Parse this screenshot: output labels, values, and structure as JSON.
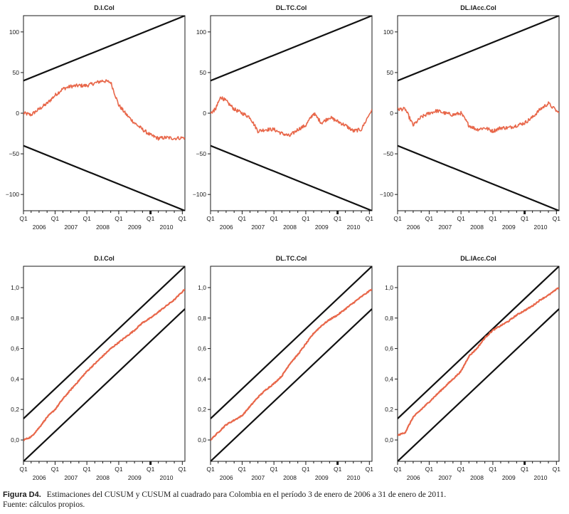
{
  "chart_data": [
    {
      "type": "line",
      "title": "D.I.Col",
      "xlabel": "",
      "ylabel": "",
      "x_range": [
        "2006-01-03",
        "2011-01-31"
      ],
      "ylim": [
        -120,
        120
      ],
      "y_ticks": [
        -100,
        -50,
        0,
        50,
        100
      ],
      "y_tick_labels": [
        "−100",
        "−50",
        "0",
        "50",
        "100"
      ],
      "x_tick_labels": [
        "Q1",
        "Q1",
        "Q1",
        "Q1",
        "Q1",
        "Q1"
      ],
      "year_labels": [
        "2006",
        "2007",
        "2008",
        "2009",
        "2010"
      ],
      "grid": false,
      "bounds": [
        {
          "x": [
            "2006-01-03",
            "2011-01-31"
          ],
          "y": [
            40,
            120
          ]
        },
        {
          "x": [
            "2006-01-03",
            "2011-01-31"
          ],
          "y": [
            -40,
            -120
          ]
        }
      ],
      "series": [
        {
          "x": [
            "2006-01-03",
            "2006-04-01",
            "2006-07-01",
            "2006-10-01",
            "2007-01-01",
            "2007-04-01",
            "2007-07-01",
            "2007-10-01",
            "2008-01-01",
            "2008-04-01",
            "2008-07-01",
            "2008-10-01",
            "2009-01-01",
            "2009-04-01",
            "2009-07-01",
            "2009-10-01",
            "2010-01-01",
            "2010-04-01",
            "2010-07-01",
            "2010-10-01",
            "2011-01-31"
          ],
          "y": [
            0,
            -2,
            5,
            12,
            22,
            30,
            33,
            34,
            34,
            37,
            40,
            38,
            10,
            -2,
            -12,
            -20,
            -27,
            -31,
            -30,
            -31,
            -30
          ]
        }
      ]
    },
    {
      "type": "line",
      "title": "DL.TC.Col",
      "xlabel": "",
      "ylabel": "",
      "x_range": [
        "2006-01-03",
        "2011-01-31"
      ],
      "ylim": [
        -120,
        120
      ],
      "y_ticks": [
        -100,
        -50,
        0,
        50,
        100
      ],
      "y_tick_labels": [
        "−100",
        "−50",
        "0",
        "50",
        "100"
      ],
      "x_tick_labels": [
        "Q1",
        "Q1",
        "Q1",
        "Q1",
        "Q1",
        "Q1"
      ],
      "year_labels": [
        "2006",
        "2007",
        "2008",
        "2009",
        "2010"
      ],
      "grid": false,
      "bounds": [
        {
          "x": [
            "2006-01-03",
            "2011-01-31"
          ],
          "y": [
            40,
            120
          ]
        },
        {
          "x": [
            "2006-01-03",
            "2011-01-31"
          ],
          "y": [
            -40,
            -120
          ]
        }
      ],
      "series": [
        {
          "x": [
            "2006-01-03",
            "2006-03-01",
            "2006-05-01",
            "2006-07-01",
            "2006-10-01",
            "2007-01-01",
            "2007-04-01",
            "2007-07-01",
            "2007-10-01",
            "2008-01-01",
            "2008-04-01",
            "2008-07-01",
            "2008-10-01",
            "2009-01-01",
            "2009-04-01",
            "2009-07-01",
            "2009-10-01",
            "2010-01-01",
            "2010-04-01",
            "2010-07-01",
            "2010-10-01",
            "2011-01-31"
          ],
          "y": [
            0,
            5,
            20,
            15,
            5,
            0,
            -5,
            -22,
            -20,
            -20,
            -25,
            -28,
            -20,
            -15,
            0,
            -12,
            -5,
            -10,
            -15,
            -22,
            -20,
            5
          ]
        }
      ]
    },
    {
      "type": "line",
      "title": "DL.IAcc.Col",
      "xlabel": "",
      "ylabel": "",
      "x_range": [
        "2006-01-03",
        "2011-01-31"
      ],
      "ylim": [
        -120,
        120
      ],
      "y_ticks": [
        -100,
        -50,
        0,
        50,
        100
      ],
      "y_tick_labels": [
        "−100",
        "−50",
        "0",
        "50",
        "100"
      ],
      "x_tick_labels": [
        "Q1",
        "Q1",
        "Q1",
        "Q1",
        "Q1",
        "Q1"
      ],
      "year_labels": [
        "2006",
        "2007",
        "2008",
        "2009",
        "2010"
      ],
      "grid": false,
      "bounds": [
        {
          "x": [
            "2006-01-03",
            "2011-01-31"
          ],
          "y": [
            40,
            120
          ]
        },
        {
          "x": [
            "2006-01-03",
            "2011-01-31"
          ],
          "y": [
            -40,
            -120
          ]
        }
      ],
      "series": [
        {
          "x": [
            "2006-01-03",
            "2006-04-01",
            "2006-07-01",
            "2006-10-01",
            "2007-01-01",
            "2007-04-01",
            "2007-07-01",
            "2007-10-01",
            "2008-01-01",
            "2008-04-01",
            "2008-07-01",
            "2008-10-01",
            "2009-01-01",
            "2009-04-01",
            "2009-07-01",
            "2009-10-01",
            "2010-01-01",
            "2010-04-01",
            "2010-07-01",
            "2010-10-01",
            "2011-01-31"
          ],
          "y": [
            5,
            5,
            -15,
            -5,
            0,
            3,
            0,
            -2,
            0,
            -15,
            -20,
            -18,
            -22,
            -18,
            -18,
            -15,
            -12,
            -5,
            5,
            12,
            0
          ]
        }
      ]
    },
    {
      "type": "line",
      "title": "D.I.Col",
      "xlabel": "",
      "ylabel": "",
      "x_range": [
        "2006-01-03",
        "2011-01-31"
      ],
      "ylim": [
        -0.14,
        1.14
      ],
      "y_ticks": [
        0.0,
        0.2,
        0.4,
        0.6,
        0.8,
        1.0
      ],
      "y_tick_labels": [
        "0,0",
        "0,2",
        "0,4",
        "0,6",
        "0,8",
        "1,0"
      ],
      "x_tick_labels": [
        "Q1",
        "Q1",
        "Q1",
        "Q1",
        "Q1",
        "Q1"
      ],
      "year_labels": [
        "2006",
        "2007",
        "2008",
        "2009",
        "2010"
      ],
      "grid": false,
      "bounds": [
        {
          "x": [
            "2006-01-03",
            "2011-01-31"
          ],
          "y": [
            0.14,
            1.14
          ]
        },
        {
          "x": [
            "2006-01-03",
            "2011-01-31"
          ],
          "y": [
            -0.14,
            0.86
          ]
        }
      ],
      "series": [
        {
          "x": [
            "2006-01-03",
            "2006-04-01",
            "2006-07-01",
            "2006-10-01",
            "2007-01-01",
            "2007-04-01",
            "2007-07-01",
            "2007-10-01",
            "2008-01-01",
            "2008-04-01",
            "2008-07-01",
            "2008-10-01",
            "2009-01-01",
            "2009-04-01",
            "2009-07-01",
            "2009-10-01",
            "2010-01-01",
            "2010-04-01",
            "2010-07-01",
            "2010-10-01",
            "2011-01-31"
          ],
          "y": [
            0.0,
            0.02,
            0.08,
            0.15,
            0.2,
            0.27,
            0.33,
            0.39,
            0.45,
            0.5,
            0.55,
            0.6,
            0.64,
            0.68,
            0.72,
            0.77,
            0.8,
            0.84,
            0.88,
            0.92,
            0.99
          ]
        }
      ]
    },
    {
      "type": "line",
      "title": "DL.TC.Col",
      "xlabel": "",
      "ylabel": "",
      "x_range": [
        "2006-01-03",
        "2011-01-31"
      ],
      "ylim": [
        -0.14,
        1.14
      ],
      "y_ticks": [
        0.0,
        0.2,
        0.4,
        0.6,
        0.8,
        1.0
      ],
      "y_tick_labels": [
        "0,0",
        "0,2",
        "0,4",
        "0,6",
        "0,8",
        "1,0"
      ],
      "x_tick_labels": [
        "Q1",
        "Q1",
        "Q1",
        "Q1",
        "Q1",
        "Q1"
      ],
      "year_labels": [
        "2006",
        "2007",
        "2008",
        "2009",
        "2010"
      ],
      "grid": false,
      "bounds": [
        {
          "x": [
            "2006-01-03",
            "2011-01-31"
          ],
          "y": [
            0.14,
            1.14
          ]
        },
        {
          "x": [
            "2006-01-03",
            "2011-01-31"
          ],
          "y": [
            -0.14,
            0.86
          ]
        }
      ],
      "series": [
        {
          "x": [
            "2006-01-03",
            "2006-04-01",
            "2006-07-01",
            "2006-10-01",
            "2007-01-01",
            "2007-04-01",
            "2007-07-01",
            "2007-10-01",
            "2008-01-01",
            "2008-04-01",
            "2008-07-01",
            "2008-10-01",
            "2009-01-01",
            "2009-04-01",
            "2009-07-01",
            "2009-10-01",
            "2010-01-01",
            "2010-04-01",
            "2010-07-01",
            "2010-10-01",
            "2011-01-31"
          ],
          "y": [
            0.0,
            0.05,
            0.1,
            0.13,
            0.16,
            0.22,
            0.28,
            0.33,
            0.37,
            0.42,
            0.5,
            0.56,
            0.63,
            0.7,
            0.75,
            0.79,
            0.82,
            0.86,
            0.9,
            0.94,
            0.99
          ]
        }
      ]
    },
    {
      "type": "line",
      "title": "DL.IAcc.Col",
      "xlabel": "",
      "ylabel": "",
      "x_range": [
        "2006-01-03",
        "2011-01-31"
      ],
      "ylim": [
        -0.14,
        1.14
      ],
      "y_ticks": [
        0.0,
        0.2,
        0.4,
        0.6,
        0.8,
        1.0
      ],
      "y_tick_labels": [
        "0,0",
        "0,2",
        "0,4",
        "0,6",
        "0,8",
        "1,0"
      ],
      "x_tick_labels": [
        "Q1",
        "Q1",
        "Q1",
        "Q1",
        "Q1",
        "Q1"
      ],
      "year_labels": [
        "2006",
        "2007",
        "2008",
        "2009",
        "2010"
      ],
      "grid": false,
      "bounds": [
        {
          "x": [
            "2006-01-03",
            "2011-01-31"
          ],
          "y": [
            0.14,
            1.14
          ]
        },
        {
          "x": [
            "2006-01-03",
            "2011-01-31"
          ],
          "y": [
            -0.14,
            0.86
          ]
        }
      ],
      "series": [
        {
          "x": [
            "2006-01-03",
            "2006-04-01",
            "2006-07-01",
            "2006-10-01",
            "2007-01-01",
            "2007-04-01",
            "2007-07-01",
            "2007-10-01",
            "2008-01-01",
            "2008-04-01",
            "2008-07-01",
            "2008-10-01",
            "2009-01-01",
            "2009-04-01",
            "2009-07-01",
            "2009-10-01",
            "2010-01-01",
            "2010-04-01",
            "2010-07-01",
            "2010-10-01",
            "2011-01-31"
          ],
          "y": [
            0.03,
            0.05,
            0.15,
            0.2,
            0.25,
            0.3,
            0.35,
            0.4,
            0.45,
            0.55,
            0.6,
            0.67,
            0.72,
            0.75,
            0.78,
            0.82,
            0.85,
            0.88,
            0.92,
            0.95,
            1.0
          ]
        }
      ]
    }
  ],
  "colors": {
    "series": "#e8674a",
    "bounds": "#111111",
    "axis": "#1a1a1a"
  },
  "caption": {
    "label": "Figura D4.",
    "text": "Estimaciones del CUSUM y CUSUM al cuadrado para Colombia en el período 3 de enero de 2006 a 31 de enero de 2011.",
    "source": "Fuente: cálculos propios."
  }
}
